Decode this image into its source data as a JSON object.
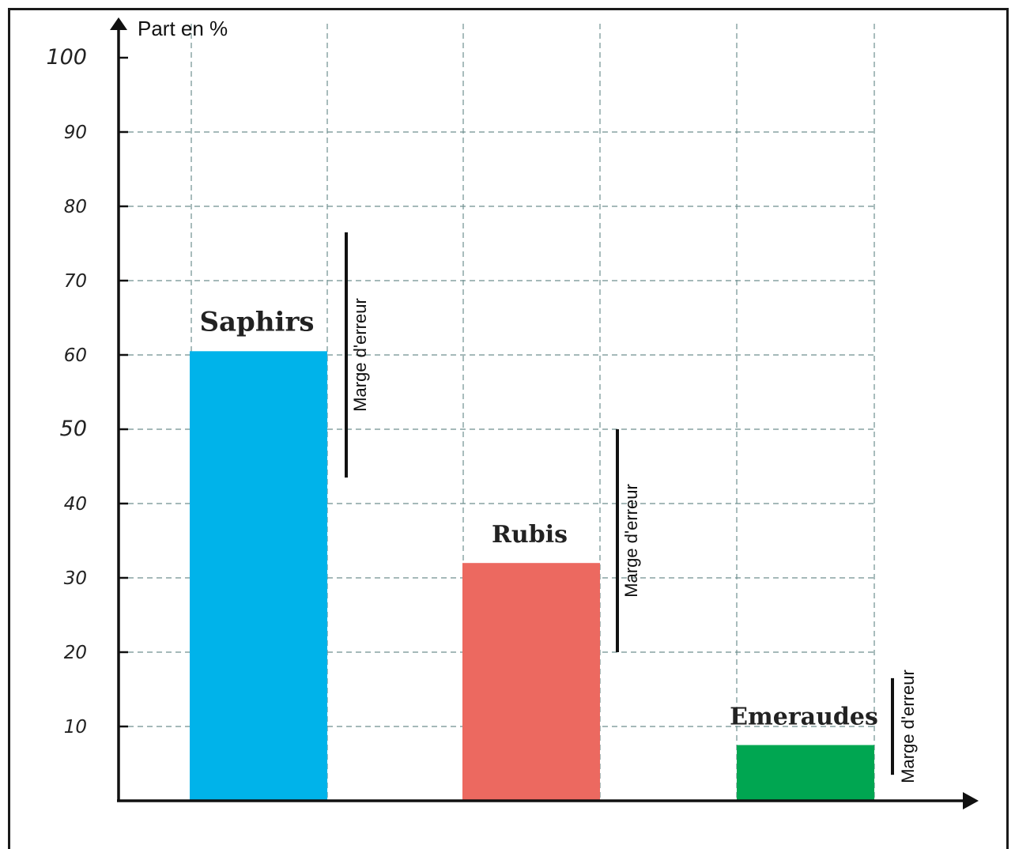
{
  "chart_data": {
    "type": "bar",
    "ylabel": "Part en %",
    "ylim": [
      0,
      100
    ],
    "yticks": [
      "10",
      "20",
      "30",
      "40",
      "50",
      "60",
      "70",
      "80",
      "90",
      "100"
    ],
    "grid": true,
    "categories": [
      "Saphirs",
      "Rubis",
      "Emeraudes"
    ],
    "values": [
      60.5,
      32,
      7.5
    ],
    "colors": [
      "#00b3ea",
      "#ec6960",
      "#00a651"
    ],
    "error_bars": [
      {
        "category": "Saphirs",
        "low": 43.5,
        "high": 76.5,
        "label": "Marge d'erreur"
      },
      {
        "category": "Rubis",
        "low": 20,
        "high": 50,
        "label": "Marge d'erreur"
      },
      {
        "category": "Emeraudes",
        "low": 3.5,
        "high": 16.5,
        "label": "Marge d'erreur"
      }
    ]
  }
}
